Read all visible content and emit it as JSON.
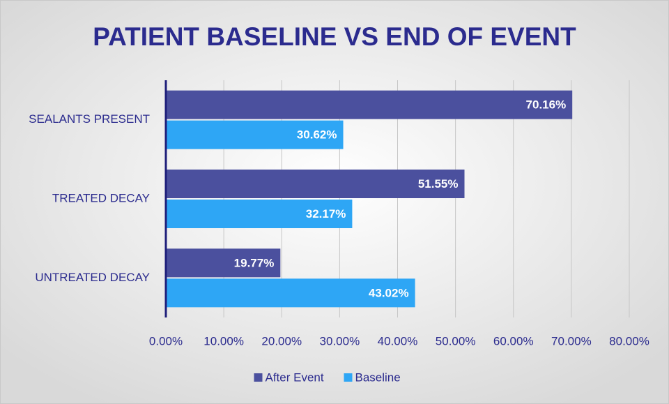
{
  "chart_data": {
    "type": "bar",
    "orientation": "horizontal",
    "title": "PATIENT BASELINE VS END OF EVENT",
    "categories": [
      "SEALANTS PRESENT",
      "TREATED DECAY",
      "UNTREATED DECAY"
    ],
    "series": [
      {
        "name": "After Event",
        "color": "#4b509e",
        "values": [
          70.16,
          51.55,
          19.77
        ],
        "value_labels": [
          "70.16%",
          "51.55%",
          "19.77%"
        ]
      },
      {
        "name": "Baseline",
        "color": "#2ea6f5",
        "values": [
          30.62,
          32.17,
          43.02
        ],
        "value_labels": [
          "30.62%",
          "32.17%",
          "43.02%"
        ]
      }
    ],
    "xlim": [
      0,
      80
    ],
    "xticks": [
      {
        "value": 0,
        "label": "0.00%"
      },
      {
        "value": 10,
        "label": "10.00%"
      },
      {
        "value": 20,
        "label": "20.00%"
      },
      {
        "value": 30,
        "label": "30.00%"
      },
      {
        "value": 40,
        "label": "40.00%"
      },
      {
        "value": 50,
        "label": "50.00%"
      },
      {
        "value": 60,
        "label": "60.00%"
      },
      {
        "value": 70,
        "label": "70.00%"
      },
      {
        "value": 80,
        "label": "80.00%"
      }
    ],
    "grid": true,
    "legend": "bottom"
  }
}
